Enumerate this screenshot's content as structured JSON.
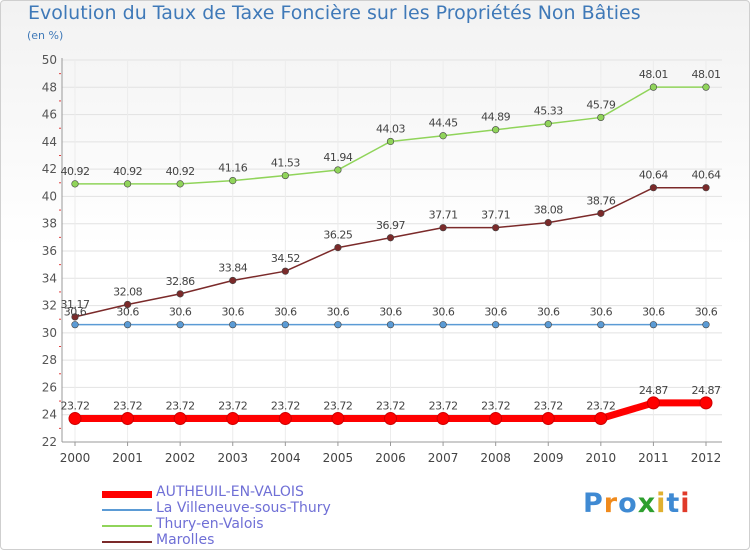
{
  "title": "Evolution du Taux de Taxe Foncière sur les Propriétés Non Bâties",
  "subtitle": "(en %)",
  "logo": {
    "text": "Proxiti",
    "colors": [
      "#3f8ad3",
      "#f08a1c",
      "#3f8ad3",
      "#2e9f2e",
      "#e0b030",
      "#3f8ad3",
      "#e03a2a"
    ]
  },
  "chart_data": {
    "type": "line",
    "x": [
      "2000",
      "2001",
      "2002",
      "2003",
      "2004",
      "2005",
      "2006",
      "2007",
      "2008",
      "2009",
      "2010",
      "2011",
      "2012"
    ],
    "ylim": [
      22,
      50
    ],
    "yticks": [
      "22",
      "24",
      "26",
      "28",
      "30",
      "32",
      "34",
      "36",
      "38",
      "40",
      "42",
      "44",
      "46",
      "48",
      "50"
    ],
    "grid": true,
    "legend_position": "bottom-left",
    "series": [
      {
        "name": "AUTHEUIL-EN-VALOIS",
        "color": "#ff0000",
        "values": [
          23.72,
          23.72,
          23.72,
          23.72,
          23.72,
          23.72,
          23.72,
          23.72,
          23.72,
          23.72,
          23.72,
          24.87,
          24.87
        ],
        "labels": [
          "23.72",
          "23.72",
          "23.72",
          "23.72",
          "23.72",
          "23.72",
          "23.72",
          "23.72",
          "23.72",
          "23.72",
          "23.72",
          "24.87",
          "24.87"
        ]
      },
      {
        "name": "La Villeneuve-sous-Thury",
        "color": "#5b9bd5",
        "values": [
          30.6,
          30.6,
          30.6,
          30.6,
          30.6,
          30.6,
          30.6,
          30.6,
          30.6,
          30.6,
          30.6,
          30.6,
          30.6
        ],
        "labels": [
          "30.6",
          "30.6",
          "30.6",
          "30.6",
          "30.6",
          "30.6",
          "30.6",
          "30.6",
          "30.6",
          "30.6",
          "30.6",
          "30.6",
          "30.6"
        ]
      },
      {
        "name": "Thury-en-Valois",
        "color": "#90d45a",
        "values": [
          40.92,
          40.92,
          40.92,
          41.16,
          41.53,
          41.94,
          44.03,
          44.45,
          44.89,
          45.33,
          45.79,
          48.01,
          48.01
        ],
        "labels": [
          "40.92",
          "40.92",
          "40.92",
          "41.16",
          "41.53",
          "41.94",
          "44.03",
          "44.45",
          "44.89",
          "45.33",
          "45.79",
          "48.01",
          "48.01"
        ]
      },
      {
        "name": "Marolles",
        "color": "#7b2a2a",
        "values": [
          31.17,
          32.08,
          32.86,
          33.84,
          34.52,
          36.25,
          36.97,
          37.71,
          37.71,
          38.08,
          38.76,
          40.64,
          40.64
        ],
        "labels": [
          "31.17",
          "32.08",
          "32.86",
          "33.84",
          "34.52",
          "36.25",
          "36.97",
          "37.71",
          "37.71",
          "38.08",
          "38.76",
          "40.64",
          "40.64"
        ]
      }
    ]
  }
}
